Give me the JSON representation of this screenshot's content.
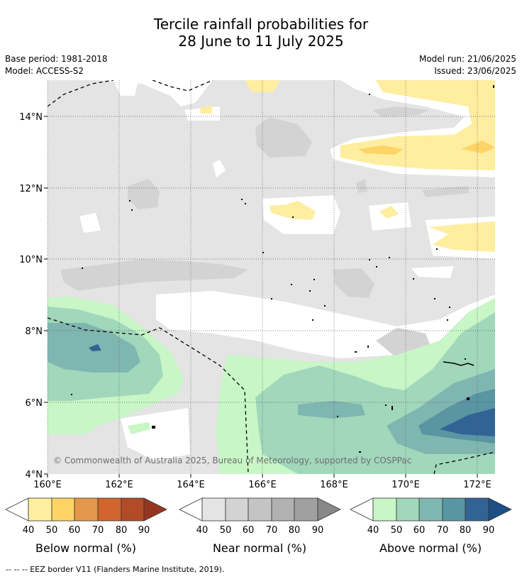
{
  "title_line1": "Tercile rainfall probabilities for",
  "title_line2": "28 June to 11 July 2025",
  "base_period": "Base period: 1981-2018",
  "model": "Model: ACCESS-S2",
  "model_run": "Model run: 21/06/2025",
  "issued": "Issued: 23/06/2025",
  "map": {
    "lat_labels": [
      "14°N",
      "12°N",
      "10°N",
      "8°N",
      "6°N",
      "4°N"
    ],
    "lon_labels": [
      "160°E",
      "162°E",
      "164°E",
      "166°E",
      "168°E",
      "170°E",
      "172°E"
    ],
    "copyright": "© Commonwealth of Australia 2025, Bureau of Meteorology, supported by COSPPac"
  },
  "colorbars": [
    {
      "title": "Below normal (%)",
      "ticks": [
        "40",
        "50",
        "60",
        "70",
        "80",
        "90"
      ],
      "colors": [
        "#ffffff",
        "#ffeda0",
        "#fed466",
        "#e3974a",
        "#d1652d",
        "#b24b28",
        "#953520"
      ]
    },
    {
      "title": "Near normal (%)",
      "ticks": [
        "40",
        "50",
        "60",
        "70",
        "80",
        "90"
      ],
      "colors": [
        "#ffffff",
        "#e4e4e4",
        "#d3d3d3",
        "#c4c4c4",
        "#b1b1b1",
        "#a0a0a0",
        "#888888"
      ]
    },
    {
      "title": "Above normal (%)",
      "ticks": [
        "40",
        "50",
        "60",
        "70",
        "80",
        "90"
      ],
      "colors": [
        "#ffffff",
        "#c8f6c6",
        "#a1d7bb",
        "#80b6b0",
        "#5995a2",
        "#326395",
        "#1b4f86"
      ]
    }
  ],
  "footer": "--  --  -- EEZ border V11 (Flanders Marine Institute, 2019)."
}
